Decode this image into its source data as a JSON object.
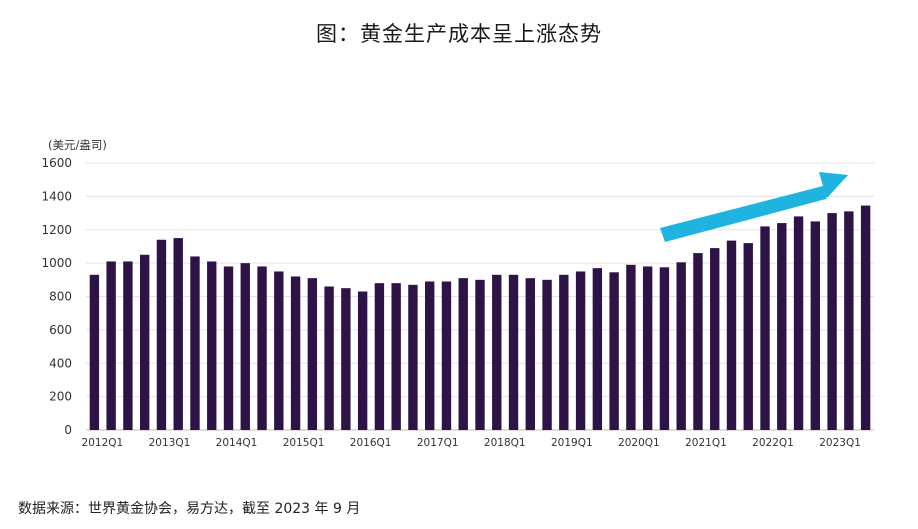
{
  "page": {
    "title": "图：黄金生产成本呈上涨态势",
    "source": "数据来源：世界黄金协会，易方达，截至 2023 年 9 月"
  },
  "colors": {
    "bar": "#2e1446",
    "grid": "#e3e3e3",
    "arrow": "#1fb4e0"
  },
  "chart_data": {
    "type": "bar",
    "unit_label": "(美元/盎司)",
    "ylim": [
      0,
      1600
    ],
    "yticks": [
      0,
      200,
      400,
      600,
      800,
      1000,
      1200,
      1400,
      1600
    ],
    "grid": true,
    "trend_arrow": "up",
    "categories": [
      "2012Q1",
      "2012Q2",
      "2012Q3",
      "2012Q4",
      "2013Q1",
      "2013Q2",
      "2013Q3",
      "2013Q4",
      "2014Q1",
      "2014Q2",
      "2014Q3",
      "2014Q4",
      "2015Q1",
      "2015Q2",
      "2015Q3",
      "2015Q4",
      "2016Q1",
      "2016Q2",
      "2016Q3",
      "2016Q4",
      "2017Q1",
      "2017Q2",
      "2017Q3",
      "2017Q4",
      "2018Q1",
      "2018Q2",
      "2018Q3",
      "2018Q4",
      "2019Q1",
      "2019Q2",
      "2019Q3",
      "2019Q4",
      "2020Q1",
      "2020Q2",
      "2020Q3",
      "2020Q4",
      "2021Q1",
      "2021Q2",
      "2021Q3",
      "2021Q4",
      "2022Q1",
      "2022Q2",
      "2022Q3",
      "2022Q4",
      "2023Q1",
      "2023Q2",
      "2023Q3"
    ],
    "x_tick_labels": [
      "2012Q1",
      "2013Q1",
      "2014Q1",
      "2015Q1",
      "2016Q1",
      "2017Q1",
      "2018Q1",
      "2019Q1",
      "2020Q1",
      "2021Q1",
      "2022Q1",
      "2023Q1"
    ],
    "values": [
      930,
      1010,
      1010,
      1050,
      1140,
      1150,
      1040,
      1010,
      980,
      1000,
      980,
      950,
      920,
      910,
      860,
      850,
      830,
      880,
      880,
      870,
      890,
      890,
      910,
      900,
      930,
      930,
      910,
      900,
      930,
      950,
      970,
      945,
      990,
      980,
      975,
      1005,
      1060,
      1090,
      1135,
      1120,
      1220,
      1240,
      1280,
      1250,
      1300,
      1310,
      1345
    ]
  }
}
